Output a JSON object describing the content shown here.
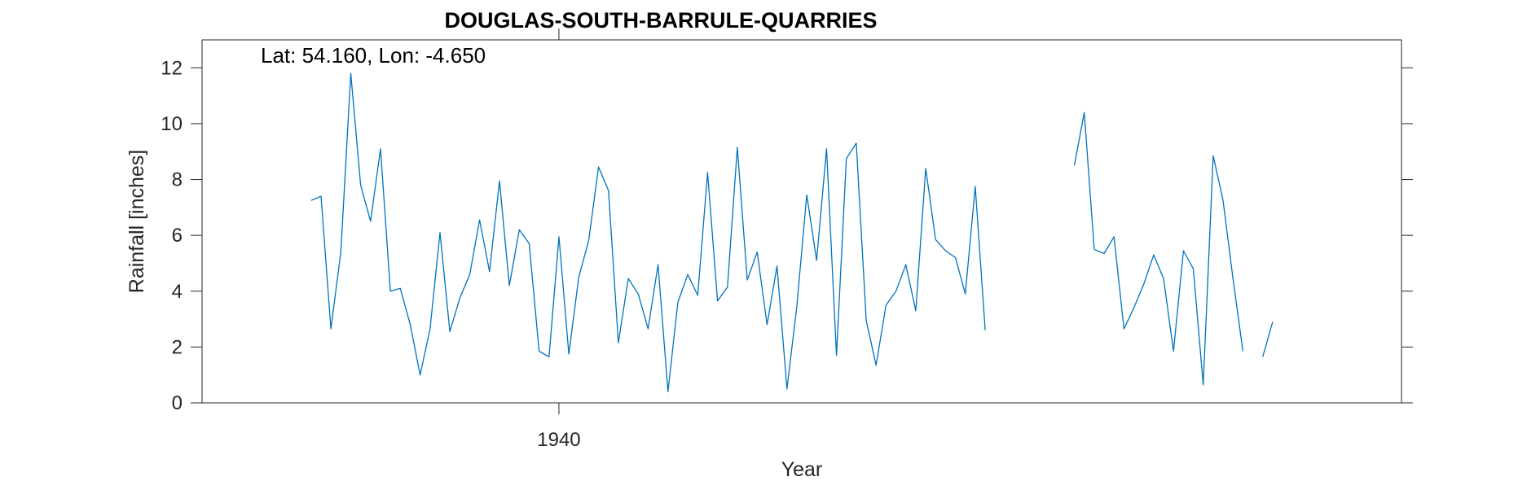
{
  "chart_data": {
    "type": "line",
    "title": "DOUGLAS-SOUTH-BARRULE-QUARRIES",
    "annotation": "Lat: 54.160, Lon: -4.650",
    "xlabel": "Year",
    "ylabel": "Rainfall [inches]",
    "xlim": [
      1904,
      2025
    ],
    "ylim": [
      0,
      13
    ],
    "yticks": [
      0,
      2,
      4,
      6,
      8,
      10,
      12
    ],
    "xticks": [
      1940
    ],
    "grid": false,
    "colors": {
      "series": "#0072BD",
      "axes": "#262626"
    },
    "series": [
      {
        "segments": [
          {
            "x_start": 1915,
            "values": [
              7.25,
              7.4,
              2.65,
              5.4,
              11.8,
              7.8,
              6.5,
              9.1,
              4.0,
              4.1,
              2.8,
              1.0,
              2.65,
              6.1,
              2.55,
              3.75,
              4.6,
              6.55,
              4.7,
              7.95,
              4.2,
              6.2,
              5.7,
              1.85,
              1.65,
              5.95,
              1.75,
              4.5,
              5.8,
              8.45,
              7.6,
              2.15,
              4.45,
              3.9,
              2.65,
              4.95,
              0.4,
              3.6,
              4.6,
              3.85,
              8.25,
              3.65,
              4.15,
              9.15,
              4.4,
              5.4,
              2.8,
              4.9,
              0.5,
              3.45,
              7.45,
              5.1,
              9.1,
              1.7,
              8.75,
              9.3,
              2.95,
              1.35,
              3.5,
              4.0,
              4.95,
              3.3,
              8.4,
              5.85,
              5.45,
              5.2,
              3.9,
              7.75,
              2.6
            ]
          },
          {
            "x_start": 1992,
            "values": [
              8.5,
              10.4,
              5.5,
              5.35,
              5.95,
              2.65,
              3.4,
              4.25,
              5.3,
              4.45,
              1.85,
              5.45,
              4.8,
              0.65,
              8.85,
              7.25,
              4.45,
              1.85
            ]
          },
          {
            "x_start": 2011,
            "values": [
              1.65,
              2.9
            ]
          }
        ]
      }
    ]
  }
}
